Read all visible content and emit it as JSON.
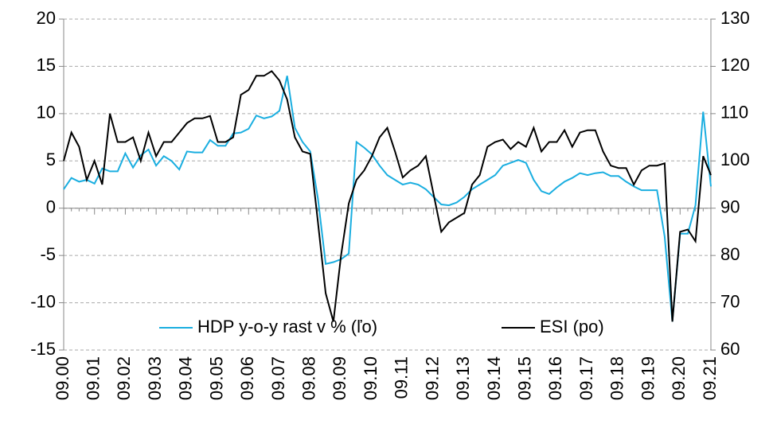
{
  "chart_data": {
    "type": "line",
    "categories": [
      "09.00",
      null,
      null,
      null,
      "09.01",
      null,
      null,
      null,
      "09.02",
      null,
      null,
      null,
      "09.03",
      null,
      null,
      null,
      "09.04",
      null,
      null,
      null,
      "09.05",
      null,
      null,
      null,
      "09.06",
      null,
      null,
      null,
      "09.07",
      null,
      null,
      null,
      "09.08",
      null,
      null,
      null,
      "09.09",
      null,
      null,
      null,
      "09.10",
      null,
      null,
      null,
      "09.11",
      null,
      null,
      null,
      "09.12",
      null,
      null,
      null,
      "09.13",
      null,
      null,
      null,
      "09.14",
      null,
      null,
      null,
      "09.15",
      null,
      null,
      null,
      "09.16",
      null,
      null,
      null,
      "09.17",
      null,
      null,
      null,
      "09.18",
      null,
      null,
      null,
      "09.19",
      null,
      null,
      null,
      "09.20",
      null,
      null,
      null,
      "09.21"
    ],
    "series": [
      {
        "name": "HDP y-o-y rast v % (ľo)",
        "color": "#1aaee0",
        "values": [
          2.0,
          3.2,
          2.8,
          3.0,
          2.6,
          4.2,
          3.9,
          3.9,
          5.8,
          4.3,
          5.6,
          6.2,
          4.5,
          5.5,
          5.0,
          4.1,
          6.0,
          5.9,
          5.9,
          7.2,
          6.6,
          6.6,
          7.9,
          8.0,
          8.4,
          9.8,
          9.5,
          9.7,
          10.3,
          14.0,
          8.5,
          7.0,
          6.0,
          1.0,
          -5.9,
          -5.7,
          -5.4,
          -4.8,
          7.0,
          6.4,
          5.7,
          4.5,
          3.5,
          3.0,
          2.5,
          2.7,
          2.5,
          2.0,
          1.2,
          0.4,
          0.3,
          0.6,
          1.2,
          2.0,
          2.5,
          3.0,
          3.5,
          4.5,
          4.8,
          5.1,
          4.8,
          3.0,
          1.8,
          1.5,
          2.2,
          2.8,
          3.2,
          3.7,
          3.5,
          3.7,
          3.8,
          3.4,
          3.4,
          2.8,
          2.3,
          1.9,
          1.9,
          1.9,
          -3.0,
          -12.0,
          -2.7,
          -2.7,
          0.3,
          10.2,
          2.3
        ]
      },
      {
        "name": "ESI (po)",
        "color": "#000000",
        "axis": "y2",
        "values": [
          100,
          106,
          103,
          96,
          100,
          95,
          110,
          104,
          104,
          105,
          100,
          106,
          101,
          104,
          104,
          106,
          108,
          109,
          109,
          109.5,
          104,
          104,
          105,
          114,
          115,
          118,
          118,
          119,
          117,
          113,
          105,
          102,
          101.5,
          87,
          72,
          66,
          80,
          91,
          96,
          98,
          101,
          105,
          107,
          102,
          96.5,
          98,
          99,
          101,
          93,
          85,
          87,
          88,
          89,
          95,
          97,
          103,
          104,
          104.5,
          102.5,
          104,
          103,
          107,
          102,
          104,
          104,
          106.5,
          103,
          106,
          106.5,
          106.5,
          102,
          99,
          98.5,
          98.5,
          95,
          98,
          99,
          99,
          99.5,
          66,
          85,
          85.5,
          83,
          101,
          97
        ]
      }
    ],
    "ylim": [
      -15,
      20
    ],
    "yticks": [
      -15,
      -10,
      -5,
      0,
      5,
      10,
      15,
      20
    ],
    "y2lim": [
      60,
      130
    ],
    "y2ticks": [
      60,
      70,
      80,
      90,
      100,
      110,
      120,
      130
    ],
    "grid": true,
    "legend": "bottom"
  }
}
